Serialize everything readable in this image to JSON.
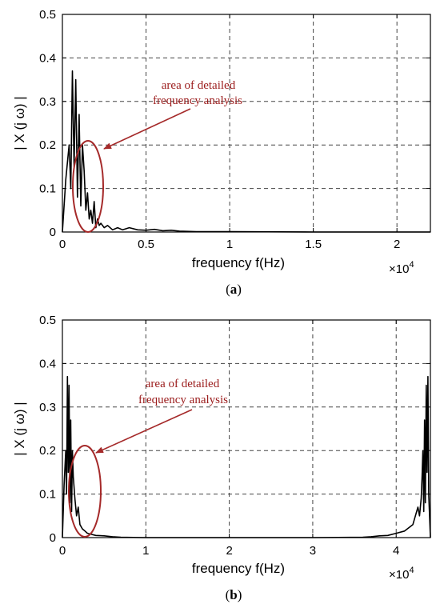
{
  "chart_data": [
    {
      "type": "line",
      "caption_letter": "a",
      "xlabel": "frequency f(Hz)",
      "ylabel": "| X (j ω) |",
      "x_multiplier": "×10",
      "x_multiplier_exp": "4",
      "xlim": [
        0,
        2.2
      ],
      "ylim": [
        0,
        0.5
      ],
      "xticks": [
        0,
        0.5,
        1,
        1.5,
        2
      ],
      "xtick_labels": [
        "0",
        "0.5",
        "1",
        "1.5",
        "2"
      ],
      "yticks": [
        0,
        0.1,
        0.2,
        0.3,
        0.4,
        0.5
      ],
      "ytick_labels": [
        "0",
        "0.1",
        "0.2",
        "0.3",
        "0.4",
        "0.5"
      ],
      "grid": true,
      "series": [
        {
          "x": [
            0.0,
            0.02,
            0.04,
            0.05,
            0.06,
            0.07,
            0.08,
            0.09,
            0.1,
            0.11,
            0.12,
            0.13,
            0.14,
            0.15,
            0.16,
            0.17,
            0.18,
            0.19,
            0.2,
            0.21,
            0.22,
            0.23,
            0.25,
            0.27,
            0.3,
            0.33,
            0.36,
            0.4,
            0.45,
            0.5,
            0.55,
            0.6,
            0.65,
            0.7,
            0.8,
            1.0,
            1.5,
            2.2
          ],
          "y": [
            0.0,
            0.12,
            0.2,
            0.1,
            0.37,
            0.15,
            0.35,
            0.08,
            0.27,
            0.06,
            0.2,
            0.14,
            0.05,
            0.09,
            0.03,
            0.05,
            0.02,
            0.07,
            0.01,
            0.03,
            0.015,
            0.02,
            0.01,
            0.015,
            0.005,
            0.01,
            0.005,
            0.01,
            0.005,
            0.004,
            0.006,
            0.003,
            0.004,
            0.002,
            0.001,
            0.001,
            0.0,
            0.0
          ]
        }
      ],
      "annotation": {
        "line1": "area of detailed",
        "line2": "frequency analysis"
      },
      "colors": {
        "signal": "#000000",
        "annotation": "#a52a2a",
        "grid": "#444444"
      }
    },
    {
      "type": "line",
      "caption_letter": "b",
      "xlabel": "frequency f(Hz)",
      "ylabel": "| X (j ω) |",
      "x_multiplier": "×10",
      "x_multiplier_exp": "4",
      "xlim": [
        0,
        4.41
      ],
      "ylim": [
        0,
        0.5
      ],
      "xticks": [
        0,
        1,
        2,
        3,
        4
      ],
      "xtick_labels": [
        "0",
        "1",
        "2",
        "3",
        "4"
      ],
      "yticks": [
        0,
        0.1,
        0.2,
        0.3,
        0.4,
        0.5
      ],
      "ytick_labels": [
        "0",
        "0.1",
        "0.2",
        "0.3",
        "0.4",
        "0.5"
      ],
      "grid": true,
      "series": [
        {
          "x": [
            0.0,
            0.02,
            0.04,
            0.05,
            0.06,
            0.07,
            0.08,
            0.09,
            0.1,
            0.11,
            0.12,
            0.13,
            0.15,
            0.17,
            0.19,
            0.21,
            0.24,
            0.27,
            0.3,
            0.4,
            0.5,
            0.6,
            0.7,
            1.0,
            2.0,
            3.0,
            3.6,
            3.7,
            3.8,
            3.9,
            4.0,
            4.1,
            4.2,
            4.26,
            4.28,
            4.3,
            4.31,
            4.32,
            4.33,
            4.34,
            4.35,
            4.36,
            4.37,
            4.38,
            4.39,
            4.41
          ],
          "y": [
            0.0,
            0.12,
            0.2,
            0.1,
            0.37,
            0.15,
            0.35,
            0.08,
            0.27,
            0.06,
            0.2,
            0.14,
            0.09,
            0.05,
            0.07,
            0.03,
            0.02,
            0.015,
            0.01,
            0.005,
            0.004,
            0.002,
            0.001,
            0.0,
            0.0,
            0.0,
            0.001,
            0.002,
            0.004,
            0.005,
            0.01,
            0.015,
            0.03,
            0.07,
            0.05,
            0.09,
            0.14,
            0.2,
            0.06,
            0.27,
            0.08,
            0.35,
            0.15,
            0.37,
            0.1,
            0.0
          ]
        }
      ],
      "annotation": {
        "line1": "area of detailed",
        "line2": "frequency analysis"
      },
      "colors": {
        "signal": "#000000",
        "annotation": "#a52a2a",
        "grid": "#444444"
      }
    }
  ]
}
